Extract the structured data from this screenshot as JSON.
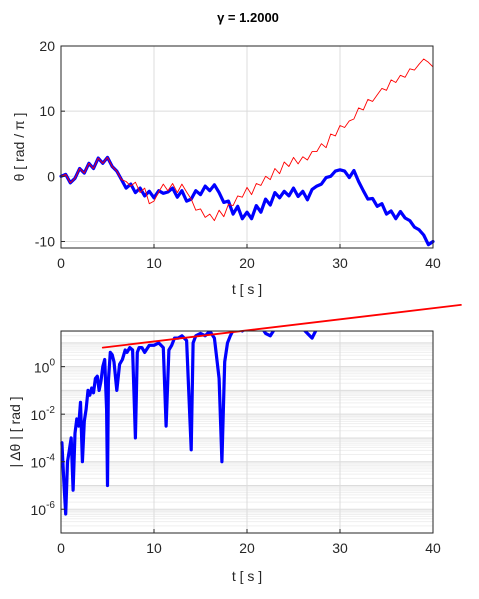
{
  "figure": {
    "title": "γ = 1.2000"
  },
  "chart_data": [
    {
      "type": "line",
      "xlabel": "t  [ s ]",
      "ylabel": "θ  [ rad / π ]",
      "xlim": [
        0,
        40
      ],
      "ylim": [
        -11,
        20
      ],
      "xticks": [
        "0",
        "10",
        "20",
        "30",
        "40"
      ],
      "yticks": [
        "-10",
        "0",
        "10",
        "20"
      ],
      "grid": true,
      "series": [
        {
          "color": "#0000ff",
          "style": "thick",
          "x": [
            0,
            0.5,
            1,
            1.5,
            2,
            2.5,
            3,
            3.5,
            4,
            4.5,
            5,
            5.5,
            6,
            6.5,
            7,
            7.5,
            8,
            8.5,
            9,
            9.5,
            10,
            10.5,
            11,
            11.5,
            12,
            12.5,
            13,
            13.5,
            14,
            14.5,
            15,
            15.5,
            16,
            16.5,
            17,
            17.5,
            18,
            18.5,
            19,
            19.5,
            20,
            20.5,
            21,
            21.5,
            22,
            22.5,
            23,
            23.5,
            24,
            24.5,
            25,
            25.5,
            26,
            26.5,
            27,
            27.5,
            28,
            28.5,
            29,
            29.5,
            30,
            30.5,
            31,
            31.5,
            32,
            32.5,
            33,
            33.5,
            34,
            34.5,
            35,
            35.5,
            36,
            36.5,
            37,
            37.5,
            38,
            38.5,
            39,
            39.5,
            40
          ],
          "values": [
            0,
            0.3,
            -1,
            -0.3,
            1.2,
            0.5,
            2,
            1.2,
            2.8,
            2,
            2.9,
            1.5,
            0.8,
            -0.5,
            -1.8,
            -1.2,
            -2.5,
            -1.8,
            -3,
            -2.3,
            -3.3,
            -2.2,
            -2.6,
            -2.4,
            -1.8,
            -3.2,
            -2.2,
            -3.8,
            -3.5,
            -2.2,
            -2.8,
            -1.5,
            -2.2,
            -1.3,
            -2.5,
            -4,
            -3.8,
            -5.8,
            -4.6,
            -6.5,
            -5.5,
            -6.5,
            -4.5,
            -5.5,
            -3.5,
            -4.4,
            -2.5,
            -3.3,
            -2.3,
            -3,
            -1.8,
            -3.1,
            -2.3,
            -3.6,
            -2,
            -1.5,
            -1.2,
            -0.2,
            0,
            0.8,
            1,
            0.8,
            -0.2,
            0.9,
            -0.8,
            -2.2,
            -3.5,
            -3.4,
            -4.6,
            -4.2,
            -5.8,
            -5.3,
            -6.5,
            -5.4,
            -6.4,
            -6.8,
            -7.8,
            -8.2,
            -9,
            -10.5,
            -10
          ]
        },
        {
          "color": "#ff0000",
          "style": "thin",
          "x": [
            0,
            0.5,
            1,
            1.5,
            2,
            2.5,
            3,
            3.5,
            4,
            4.5,
            5,
            5.5,
            6,
            6.5,
            7,
            7.5,
            8,
            8.5,
            9,
            9.5,
            10,
            10.5,
            11,
            11.5,
            12,
            12.5,
            13,
            13.5,
            14,
            14.5,
            15,
            15.5,
            16,
            16.5,
            17,
            17.5,
            18,
            18.5,
            19,
            19.5,
            20,
            20.5,
            21,
            21.5,
            22,
            22.5,
            23,
            23.5,
            24,
            24.5,
            25,
            25.5,
            26,
            26.5,
            27,
            27.5,
            28,
            28.5,
            29,
            29.5,
            30,
            30.5,
            31,
            31.5,
            32,
            32.5,
            33,
            33.5,
            34,
            34.5,
            35,
            35.5,
            36,
            36.5,
            37,
            37.5,
            38,
            38.5,
            39,
            39.5,
            40
          ],
          "values": [
            0,
            0.3,
            -1,
            -0.3,
            1.2,
            0.5,
            2,
            1.2,
            2.8,
            2,
            2.9,
            1.5,
            0.8,
            -0.5,
            -0.8,
            -1.5,
            -0.9,
            -2.5,
            -1.8,
            -4.2,
            -3.8,
            -2.4,
            -1.2,
            -2.2,
            -1.1,
            -2.5,
            -1.2,
            -2.4,
            -3.5,
            -5.2,
            -5,
            -6.3,
            -5.8,
            -6.8,
            -5.2,
            -6.2,
            -4.3,
            -4.5,
            -3,
            -3.2,
            -1.7,
            -2.8,
            -1.1,
            -1.4,
            0,
            -0.5,
            1.2,
            0.4,
            2.2,
            1.5,
            2.9,
            1.9,
            3,
            2.5,
            3.8,
            3.8,
            5,
            4.4,
            6.5,
            6.2,
            7.8,
            7.5,
            8.5,
            8.8,
            10.5,
            10.2,
            11.8,
            11.5,
            12.5,
            13.5,
            13.2,
            14.8,
            14.4,
            15.5,
            15.2,
            16.5,
            16.3,
            17.2,
            18,
            17.5,
            16.8
          ]
        }
      ]
    },
    {
      "type": "line",
      "xlabel": "t  [ s ]",
      "ylabel": "| Δθ |  [ rad ]",
      "xlim": [
        0,
        40
      ],
      "ylim_log10": [
        -7,
        1.5
      ],
      "log_y": true,
      "xticks": [
        "0",
        "10",
        "20",
        "30",
        "40"
      ],
      "yticks": [
        {
          "base": "10",
          "exp": "-6",
          "value": -6
        },
        {
          "base": "10",
          "exp": "-4",
          "value": -4
        },
        {
          "base": "10",
          "exp": "-2",
          "value": -2
        },
        {
          "base": "10",
          "exp": "0",
          "value": 0
        }
      ],
      "grid": true,
      "series": [
        {
          "color": "#0000ff",
          "style": "thick",
          "x": [
            0.1,
            0.3,
            0.5,
            0.7,
            0.9,
            1.1,
            1.3,
            1.5,
            1.7,
            1.9,
            2.1,
            2.3,
            2.5,
            2.7,
            2.9,
            3.1,
            3.3,
            3.5,
            3.7,
            3.9,
            4.1,
            4.3,
            4.5,
            4.7,
            4.9,
            5.0,
            5.1,
            5.3,
            5.5,
            5.7,
            6.0,
            6.3,
            6.6,
            6.9,
            7.1,
            7.4,
            7.7,
            8.0,
            8.2,
            8.4,
            8.7,
            9.0,
            9.5,
            10.0,
            10.5,
            11.0,
            11.3,
            11.6,
            11.9,
            12.2,
            12.6,
            13.0,
            13.5,
            14.0,
            14.2,
            14.5,
            15.0,
            15.5,
            16.0,
            16.5,
            17.0,
            17.3,
            17.6,
            17.9,
            18.2,
            18.6,
            19.0,
            19.5,
            20.0,
            20.5,
            21.0,
            21.5,
            22.0,
            22.5,
            23.0,
            23.5,
            24.0,
            24.5,
            25.0,
            25.5,
            26.0,
            26.5,
            27.0,
            27.5,
            28.0,
            28.5,
            29.0,
            29.5,
            30.0,
            30.5,
            31.0,
            31.5,
            32.0,
            32.5,
            33.0,
            33.5,
            34.0,
            34.5,
            35.0,
            35.5,
            36.0,
            36.5,
            37.0,
            37.5,
            38.0,
            38.5,
            39.0,
            39.5,
            40.0
          ],
          "values": [
            -3.2,
            -4.8,
            -6.2,
            -4.0,
            -3.5,
            -3.0,
            -5.2,
            -2.8,
            -2.2,
            -2.5,
            -1.5,
            -4.0,
            -2.3,
            -1.8,
            -1.0,
            -1.2,
            -0.9,
            -1.1,
            -0.5,
            -0.4,
            -1.0,
            -0.6,
            0.0,
            0.3,
            -1.8,
            -5.0,
            -0.6,
            0.6,
            0.5,
            0.2,
            -1.0,
            0.1,
            0.3,
            0.7,
            0.6,
            0.8,
            0.7,
            -3.0,
            0.6,
            0.8,
            0.8,
            0.6,
            0.9,
            0.9,
            1.0,
            0.8,
            -2.5,
            0.7,
            0.9,
            1.2,
            1.2,
            1.3,
            1.1,
            -3.5,
            1.0,
            1.3,
            1.4,
            1.3,
            1.5,
            1.2,
            -0.5,
            -4.0,
            0.2,
            1.0,
            1.3,
            1.6,
            1.6,
            1.5,
            1.7,
            1.7,
            1.8,
            1.7,
            1.4,
            1.3,
            1.6,
            1.8,
            1.8,
            1.6,
            1.7,
            1.8,
            1.6,
            1.4,
            1.2,
            1.6,
            1.7,
            1.7,
            1.9,
            1.8,
            1.8,
            1.9,
            2.0,
            2.0,
            2.0,
            2.0,
            2.1,
            2.1,
            2.2,
            2.1,
            2.2,
            2.3,
            2.2,
            2.3,
            2.4,
            2.4,
            2.4,
            2.5,
            2.5,
            2.5,
            2.5
          ]
        },
        {
          "color": "#ff0000",
          "style": "medium",
          "x": [
            4.5,
            43
          ],
          "values": [
            0.8,
            2.6
          ]
        }
      ]
    }
  ]
}
